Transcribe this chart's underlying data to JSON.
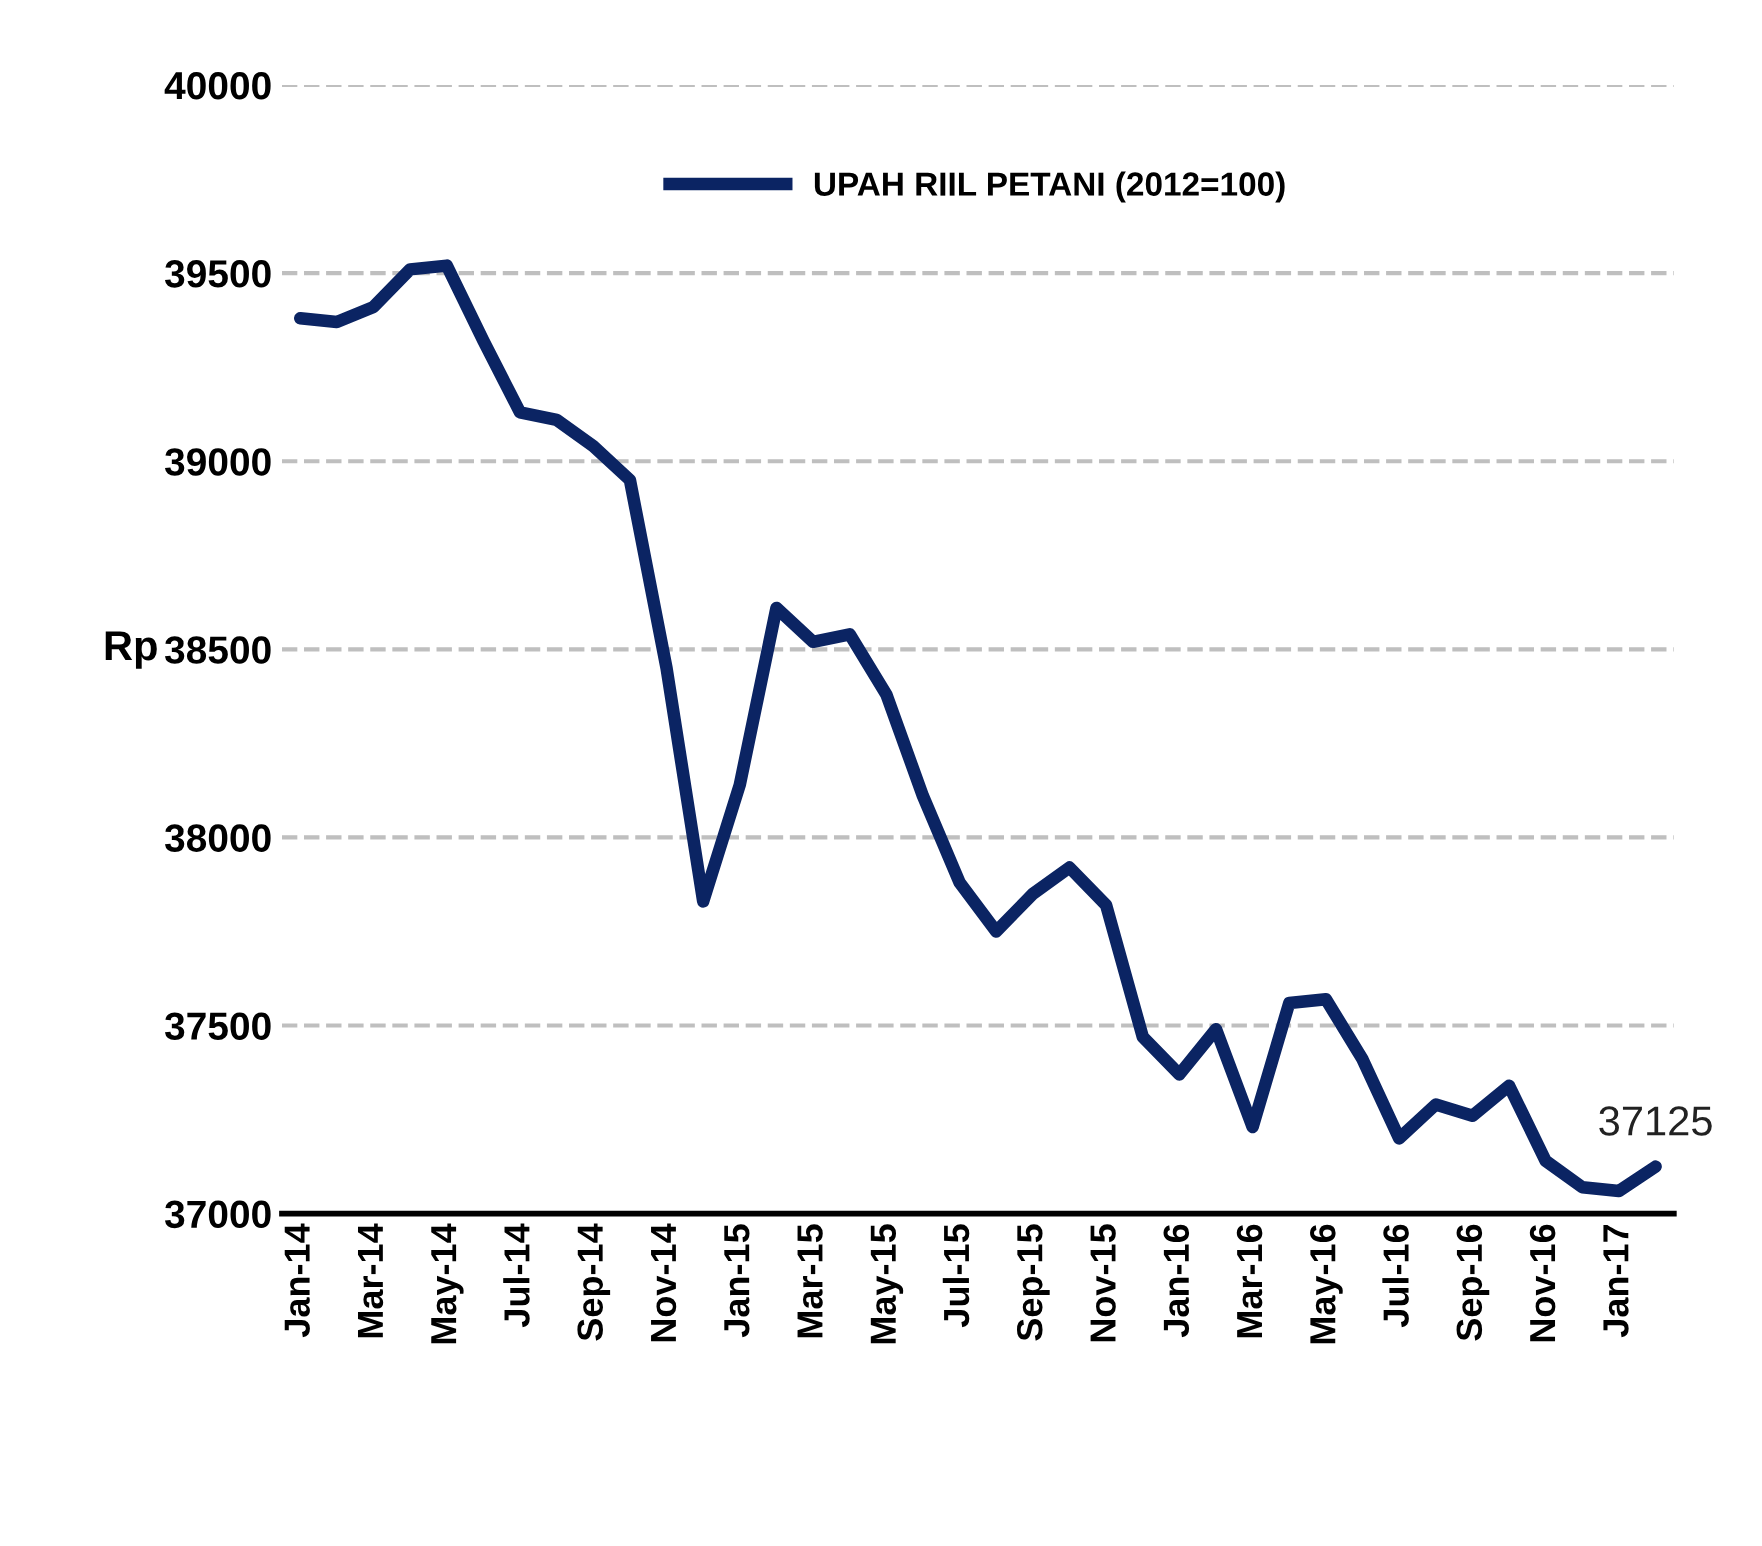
{
  "chart_data": {
    "type": "line",
    "ylabel": "Rp",
    "categories": [
      "Jan-14",
      null,
      "Mar-14",
      null,
      "May-14",
      null,
      "Jul-14",
      null,
      "Sep-14",
      null,
      "Nov-14",
      null,
      "Jan-15",
      null,
      "Mar-15",
      null,
      "May-15",
      null,
      "Jul-15",
      null,
      "Sep-15",
      null,
      "Nov-15",
      null,
      "Jan-16",
      null,
      "Mar-16",
      null,
      "May-16",
      null,
      "Jul-16",
      null,
      "Sep-16",
      null,
      "Nov-16",
      null,
      "Jan-17",
      null
    ],
    "series": [
      {
        "name": "UPAH RIIL PETANI (2012=100)",
        "color": "#0b2463",
        "values": [
          39380,
          39370,
          39410,
          39510,
          39520,
          39320,
          39130,
          39110,
          39040,
          38950,
          38450,
          37830,
          38140,
          38610,
          38520,
          38540,
          38380,
          38110,
          37880,
          37750,
          37850,
          37920,
          37820,
          37470,
          37370,
          37490,
          37230,
          37560,
          37570,
          37410,
          37200,
          37290,
          37260,
          37340,
          37140,
          37070,
          37060,
          37125
        ],
        "value_labels": [
          null,
          null,
          null,
          null,
          null,
          null,
          null,
          null,
          null,
          null,
          null,
          null,
          null,
          null,
          null,
          null,
          null,
          null,
          null,
          null,
          null,
          null,
          null,
          null,
          null,
          null,
          null,
          null,
          null,
          null,
          null,
          null,
          null,
          null,
          null,
          null,
          null,
          "37125"
        ]
      }
    ],
    "ylim": [
      37000,
      40000
    ],
    "yticks": [
      37000,
      37500,
      38000,
      38500,
      39000,
      39500,
      40000
    ],
    "grid": "y",
    "legend": "top",
    "line_style": "solid",
    "marker": "none"
  }
}
